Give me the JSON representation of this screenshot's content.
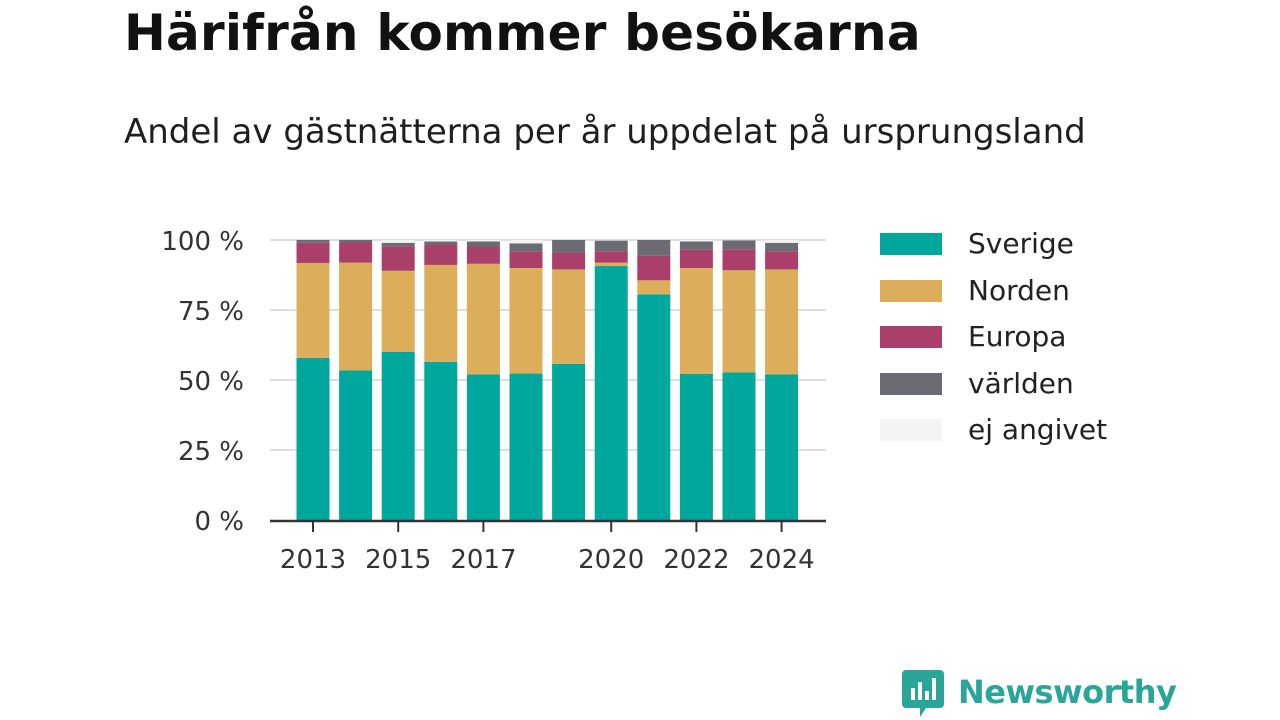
{
  "title": "Härifrån kommer besökarna",
  "subtitle": "Andel av gästnätterna per år uppdelat på ursprungsland",
  "brand": "Newsworthy",
  "chart_data": {
    "type": "bar",
    "stacked": true,
    "title": "Härifrån kommer besökarna",
    "subtitle": "Andel av gästnätterna per år uppdelat på ursprungsland",
    "categories": [
      "2013",
      "2014",
      "2015",
      "2016",
      "2017",
      "2018",
      "2019",
      "2020",
      "2021",
      "2022",
      "2023",
      "2024"
    ],
    "x_tick_labels": [
      "2013",
      "2015",
      "2017",
      "2020",
      "2022",
      "2024"
    ],
    "x_ticks_at": [
      "2013",
      "2015",
      "2017",
      "2020",
      "2022",
      "2024"
    ],
    "y_ticks": [
      0,
      25,
      50,
      75,
      100
    ],
    "y_tick_labels": [
      "0 %",
      "25 %",
      "50 %",
      "75 %",
      "100 %"
    ],
    "ylim": [
      0,
      100
    ],
    "grid": true,
    "legend_position": "right",
    "series": [
      {
        "name": "Sverige",
        "color": "#00a79d",
        "values": [
          57.9,
          53.4,
          60.0,
          56.5,
          52.0,
          52.3,
          55.8,
          90.7,
          80.6,
          52.2,
          52.7,
          52.0
        ]
      },
      {
        "name": "Norden",
        "color": "#dcae5c",
        "values": [
          33.9,
          38.5,
          29.0,
          34.6,
          39.5,
          37.7,
          33.7,
          1.2,
          5.0,
          37.8,
          36.5,
          37.5
        ]
      },
      {
        "name": "Europa",
        "color": "#ab3f6b",
        "values": [
          7.2,
          7.2,
          8.8,
          7.3,
          6.0,
          6.0,
          6.0,
          4.1,
          8.8,
          6.5,
          7.5,
          6.5
        ]
      },
      {
        "name": "världen",
        "color": "#6b6b73",
        "values": [
          1.0,
          0.9,
          1.2,
          1.1,
          2.0,
          2.8,
          4.5,
          3.8,
          5.6,
          3.0,
          3.2,
          3.0
        ]
      },
      {
        "name": "ej angivet",
        "color": "#f5f4f4",
        "values": [
          0.0,
          0.0,
          1.0,
          0.5,
          0.5,
          1.2,
          0.0,
          0.2,
          0.0,
          0.5,
          0.1,
          1.0
        ]
      }
    ]
  }
}
